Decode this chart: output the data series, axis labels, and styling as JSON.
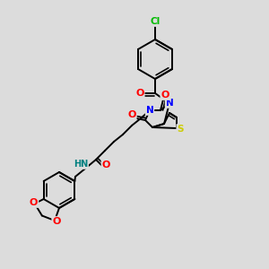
{
  "bg_color": "#dcdcdc",
  "bond_color": "#000000",
  "bond_width": 1.4,
  "atom_colors": {
    "C": "#000000",
    "N": "#0000ff",
    "O": "#ff0000",
    "S": "#cccc00",
    "Cl": "#00bb00",
    "H": "#008080"
  },
  "fig_width": 3.0,
  "fig_height": 3.0,
  "dpi": 100
}
